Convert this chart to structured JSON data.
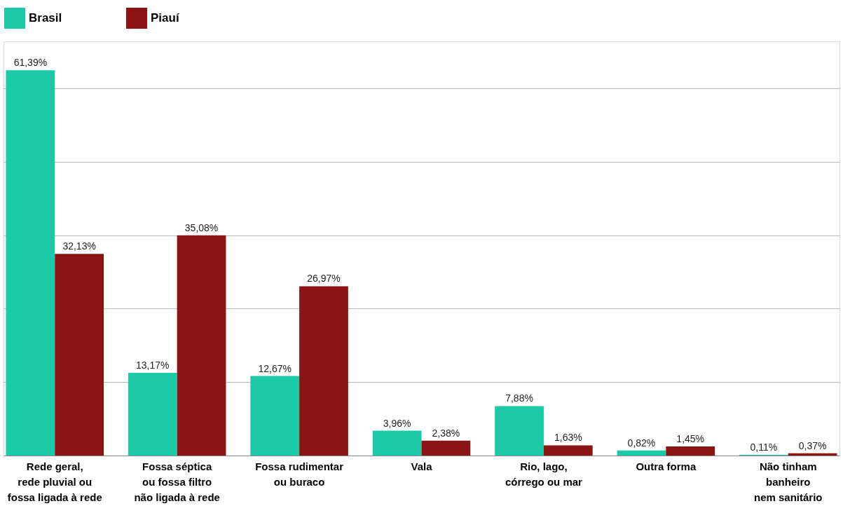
{
  "chart_data": {
    "type": "bar",
    "categories": [
      "Rede geral,\nrede pluvial ou\nfossa ligada à rede",
      "Fossa séptica\nou fossa filtro\nnão ligada à rede",
      "Fossa rudimentar\nou buraco",
      "Vala",
      "Rio, lago,\ncórrego ou mar",
      "Outra forma",
      "Não tinham\nbanheiro\nnem sanitário"
    ],
    "series": [
      {
        "name": "Brasil",
        "color": "#1ccaa8",
        "values": [
          61.39,
          13.17,
          12.67,
          3.96,
          7.88,
          0.82,
          0.11
        ],
        "value_labels": [
          "61,39%",
          "13,17%",
          "12,67%",
          "3,96%",
          "7,88%",
          "0,82%",
          "0,11%"
        ]
      },
      {
        "name": "Piauí",
        "color": "#8b1414",
        "values": [
          32.13,
          35.08,
          26.97,
          2.38,
          1.63,
          1.45,
          0.37
        ],
        "value_labels": [
          "32,13%",
          "35,08%",
          "26,97%",
          "2,38%",
          "1,63%",
          "1,45%",
          "0,37%"
        ]
      }
    ],
    "ylim": [
      0,
      66
    ],
    "yticks": [
      {
        "value": 0,
        "label": null
      },
      {
        "value": 11.7,
        "label": null
      },
      {
        "value": 23.4,
        "label": null
      },
      {
        "value": 35.1,
        "label": null
      },
      {
        "value": 46.8,
        "label": null
      },
      {
        "value": 58.5,
        "label": null
      }
    ],
    "grid": "y",
    "legend": "top",
    "tick_labels": "x"
  }
}
